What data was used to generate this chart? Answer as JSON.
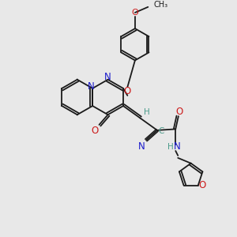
{
  "bg_color": "#e8e8e8",
  "bond_color": "#1a1a1a",
  "n_color": "#1a1acc",
  "o_color": "#cc1a1a",
  "h_color": "#4a9a8a",
  "figsize": [
    3.0,
    3.0
  ],
  "dpi": 100,
  "xlim": [
    0,
    10
  ],
  "ylim": [
    0,
    10
  ]
}
